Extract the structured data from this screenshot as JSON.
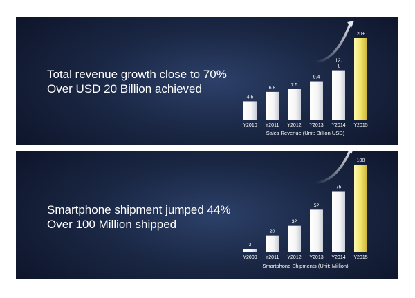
{
  "panels": [
    {
      "headline": [
        "Total revenue growth close to 70%",
        "Over USD 20 Billion achieved"
      ]
    },
    {
      "headline": [
        "Smartphone shipment jumped 44%",
        "Over 100 Million shipped"
      ]
    }
  ],
  "colors": {
    "bar": "#f5f5f5",
    "highlight": "#f2e36a",
    "background": "#1a2744",
    "text": "#ffffff"
  },
  "chart_data": [
    {
      "type": "bar",
      "title": "Sales Revenue  (Unit: Billion USD)",
      "categories": [
        "Y2010",
        "Y2011",
        "Y2012",
        "Y2013",
        "Y2014",
        "Y2015"
      ],
      "values": [
        4.5,
        6.8,
        7.5,
        9.4,
        12.1,
        20
      ],
      "value_labels": [
        "4.5",
        "6.8",
        "7.5",
        "9.4",
        "12.\n1",
        "20+"
      ],
      "highlight_index": 5,
      "ylim": [
        0,
        20
      ],
      "grid": false,
      "legend": "none"
    },
    {
      "type": "bar",
      "title": "Smartphone Shipments  (Unit: Million)",
      "categories": [
        "Y2009",
        "Y2011",
        "Y2012",
        "Y2013",
        "Y2014",
        "Y2015"
      ],
      "values": [
        3,
        20,
        32,
        52,
        75,
        108
      ],
      "value_labels": [
        "3",
        "20",
        "32",
        "52",
        "75",
        "108"
      ],
      "highlight_index": 5,
      "ylim": [
        0,
        108
      ],
      "grid": false,
      "legend": "none"
    }
  ]
}
